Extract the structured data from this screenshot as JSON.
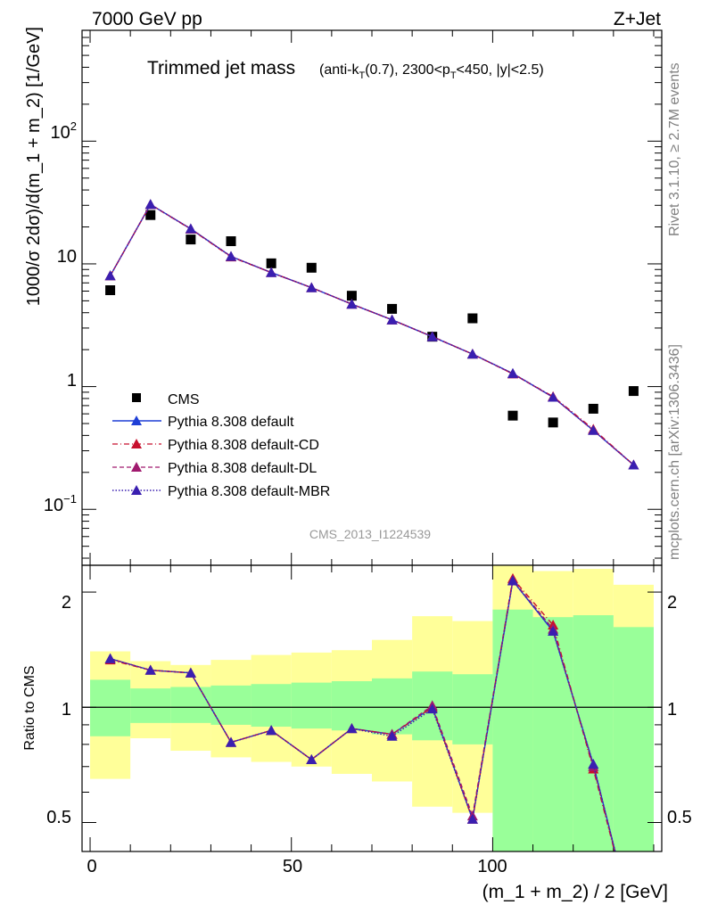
{
  "header": {
    "left": "7000 GeV pp",
    "right": "Z+Jet"
  },
  "side_text": {
    "rivet": "Rivet 3.1.10, ≥ 2.7M events",
    "mcplots": "mcplots.cern.ch [arXiv:1306.3436]"
  },
  "chart_data": [
    {
      "type": "scatter",
      "panel": "main",
      "title": "Trimmed jet mass",
      "subtitle_parts": {
        "pre": "(anti-k",
        "sub1": "T",
        "mid": "(0.7), 2300<p",
        "sub2": "T",
        "post": "<450, |y|<2.5)"
      },
      "ylabel": "1000/σ 2dσ)/d(m_1 + m_2) [1/GeV]",
      "yscale": "log",
      "ylim": [
        0.035,
        800
      ],
      "xlim": [
        -2,
        142
      ],
      "ytick_labels": [
        "10",
        "1"
      ],
      "ytick_pow": [
        {
          "base": "10",
          "exp": "2"
        },
        {
          "base": "10",
          "exp": "−1"
        }
      ],
      "watermark": "CMS_2013_I1224539",
      "legend_position": "lower-left",
      "x": [
        5,
        15,
        25,
        35,
        45,
        55,
        65,
        75,
        85,
        95,
        105,
        115,
        125,
        135
      ],
      "series": [
        {
          "name": "CMS",
          "color": "#000000",
          "marker": "square",
          "line": "none",
          "values": [
            6.1,
            25.0,
            15.8,
            15.3,
            10.1,
            9.3,
            5.5,
            4.3,
            2.55,
            3.6,
            0.58,
            0.51,
            0.66,
            0.92
          ]
        },
        {
          "name": "Pythia 8.308 default",
          "color": "#1f3fd6",
          "marker": "triangle",
          "line": "solid",
          "values": [
            8.0,
            30.5,
            19.3,
            11.5,
            8.5,
            6.4,
            4.7,
            3.5,
            2.55,
            1.84,
            1.28,
            0.82,
            0.44,
            0.23
          ]
        },
        {
          "name": "Pythia 8.308 default-CD",
          "color": "#c8102e",
          "marker": "triangle",
          "line": "dashdot",
          "values": [
            8.0,
            30.4,
            19.2,
            11.4,
            8.5,
            6.4,
            4.7,
            3.5,
            2.55,
            1.84,
            1.27,
            0.83,
            0.45,
            0.23
          ]
        },
        {
          "name": "Pythia 8.308 default-DL",
          "color": "#a0196e",
          "marker": "triangle",
          "line": "dashed",
          "values": [
            8.0,
            30.5,
            19.3,
            11.5,
            8.5,
            6.4,
            4.7,
            3.5,
            2.56,
            1.84,
            1.27,
            0.82,
            0.44,
            0.23
          ]
        },
        {
          "name": "Pythia 8.308 default-MBR",
          "color": "#3a1fb0",
          "marker": "triangle",
          "line": "dotted",
          "values": [
            8.0,
            30.5,
            19.3,
            11.5,
            8.5,
            6.4,
            4.7,
            3.5,
            2.55,
            1.84,
            1.28,
            0.82,
            0.44,
            0.23
          ]
        }
      ]
    },
    {
      "type": "line",
      "panel": "ratio",
      "ylabel": "Ratio to CMS",
      "xlabel": "(m_1 + m_2) / 2 [GeV]",
      "yscale": "log",
      "ylim": [
        0.42,
        2.35
      ],
      "xlim": [
        -2,
        142
      ],
      "ytick_labels": [
        "2",
        "1",
        "0.5"
      ],
      "xtick_labels": [
        "0",
        "50",
        "100"
      ],
      "reference_line": 1,
      "bands": {
        "bin_edges": [
          0,
          10,
          20,
          30,
          40,
          50,
          60,
          70,
          80,
          90,
          100,
          110,
          120,
          130,
          140
        ],
        "inner_color": "#99ff99",
        "outer_color": "#ffff99",
        "inner_low": [
          0.84,
          0.91,
          0.91,
          0.9,
          0.89,
          0.88,
          0.87,
          0.85,
          0.82,
          0.8,
          0.36,
          0.36,
          0.36,
          0.36
        ],
        "inner_high": [
          1.18,
          1.12,
          1.13,
          1.14,
          1.15,
          1.16,
          1.17,
          1.19,
          1.24,
          1.22,
          1.8,
          1.72,
          1.74,
          1.62
        ],
        "outer_low": [
          0.65,
          0.83,
          0.77,
          0.74,
          0.72,
          0.7,
          0.67,
          0.64,
          0.55,
          0.53,
          0.36,
          0.36,
          0.36,
          0.36
        ],
        "outer_high": [
          1.4,
          1.32,
          1.29,
          1.33,
          1.37,
          1.39,
          1.41,
          1.5,
          1.73,
          1.68,
          2.38,
          2.27,
          2.3,
          2.09
        ]
      },
      "x": [
        5,
        15,
        25,
        35,
        45,
        55,
        65,
        75,
        85,
        95,
        105,
        115,
        125,
        135
      ],
      "series": [
        {
          "name": "Pythia 8.308 default",
          "color": "#1f3fd6",
          "line": "solid",
          "values": [
            1.34,
            1.25,
            1.23,
            0.81,
            0.87,
            0.73,
            0.88,
            0.85,
            1.0,
            0.51,
            2.14,
            1.58,
            0.71,
            0.27
          ]
        },
        {
          "name": "Pythia 8.308 default-CD",
          "color": "#c8102e",
          "line": "dashdot",
          "values": [
            1.33,
            1.25,
            1.23,
            0.81,
            0.87,
            0.73,
            0.88,
            0.85,
            1.0,
            0.51,
            2.17,
            1.64,
            0.69,
            0.27
          ]
        },
        {
          "name": "Pythia 8.308 default-DL",
          "color": "#a0196e",
          "line": "dashed",
          "values": [
            1.34,
            1.25,
            1.23,
            0.81,
            0.87,
            0.73,
            0.88,
            0.85,
            1.01,
            0.52,
            2.15,
            1.6,
            0.7,
            0.27
          ]
        },
        {
          "name": "Pythia 8.308 default-MBR",
          "color": "#3a1fb0",
          "line": "dotted",
          "values": [
            1.34,
            1.25,
            1.23,
            0.81,
            0.87,
            0.73,
            0.88,
            0.84,
            0.99,
            0.51,
            2.14,
            1.58,
            0.71,
            0.27
          ]
        }
      ]
    }
  ]
}
